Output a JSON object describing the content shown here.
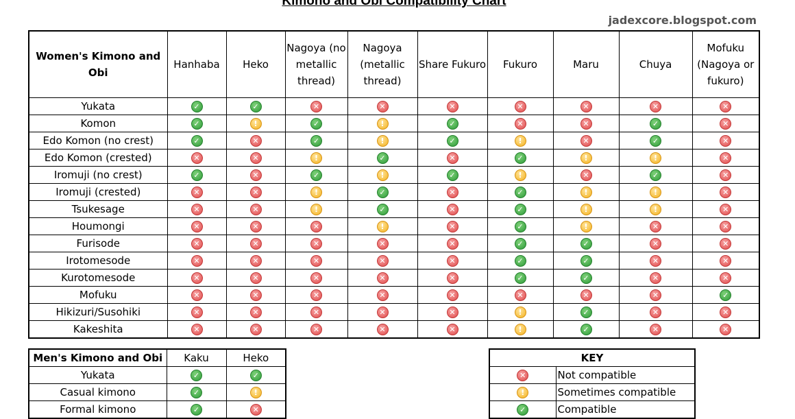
{
  "title": "Kimono and Obi Compatibility Chart",
  "credit": "jadexcore.blogspot.com",
  "icons": {
    "yes": "check-icon",
    "no": "x-icon",
    "maybe": "exclamation-icon"
  },
  "colors": {
    "yes": "#2e9a38",
    "no": "#e04b4b",
    "maybe": "#f4b21f"
  },
  "women": {
    "corner": "Women's Kimono and Obi",
    "columns": [
      "Hanhaba",
      "Heko",
      "Nagoya (no metallic thread)",
      "Nagoya (metallic thread)",
      "Share Fukuro",
      "Fukuro",
      "Maru",
      "Chuya",
      "Mofuku (Nagoya or fukuro)"
    ],
    "rows": [
      {
        "label": "Yukata",
        "values": [
          "yes",
          "yes",
          "no",
          "no",
          "no",
          "no",
          "no",
          "no",
          "no"
        ]
      },
      {
        "label": "Komon",
        "values": [
          "yes",
          "maybe",
          "yes",
          "maybe",
          "yes",
          "no",
          "no",
          "yes",
          "no"
        ]
      },
      {
        "label": "Edo Komon (no crest)",
        "values": [
          "yes",
          "no",
          "yes",
          "maybe",
          "yes",
          "maybe",
          "no",
          "yes",
          "no"
        ]
      },
      {
        "label": "Edo Komon (crested)",
        "values": [
          "no",
          "no",
          "maybe",
          "yes",
          "no",
          "yes",
          "maybe",
          "maybe",
          "no"
        ]
      },
      {
        "label": "Iromuji (no crest)",
        "values": [
          "yes",
          "no",
          "yes",
          "maybe",
          "yes",
          "maybe",
          "no",
          "yes",
          "no"
        ]
      },
      {
        "label": "Iromuji (crested)",
        "values": [
          "no",
          "no",
          "maybe",
          "yes",
          "no",
          "yes",
          "maybe",
          "maybe",
          "no"
        ]
      },
      {
        "label": "Tsukesage",
        "values": [
          "no",
          "no",
          "maybe",
          "yes",
          "no",
          "yes",
          "maybe",
          "maybe",
          "no"
        ]
      },
      {
        "label": "Houmongi",
        "values": [
          "no",
          "no",
          "no",
          "maybe",
          "no",
          "yes",
          "maybe",
          "no",
          "no"
        ]
      },
      {
        "label": "Furisode",
        "values": [
          "no",
          "no",
          "no",
          "no",
          "no",
          "yes",
          "yes",
          "no",
          "no"
        ]
      },
      {
        "label": "Irotomesode",
        "values": [
          "no",
          "no",
          "no",
          "no",
          "no",
          "yes",
          "yes",
          "no",
          "no"
        ]
      },
      {
        "label": "Kurotomesode",
        "values": [
          "no",
          "no",
          "no",
          "no",
          "no",
          "yes",
          "yes",
          "no",
          "no"
        ]
      },
      {
        "label": "Mofuku",
        "values": [
          "no",
          "no",
          "no",
          "no",
          "no",
          "no",
          "no",
          "no",
          "yes"
        ]
      },
      {
        "label": "Hikizuri/Susohiki",
        "values": [
          "no",
          "no",
          "no",
          "no",
          "no",
          "maybe",
          "yes",
          "no",
          "no"
        ]
      },
      {
        "label": "Kakeshita",
        "values": [
          "no",
          "no",
          "no",
          "no",
          "no",
          "maybe",
          "yes",
          "no",
          "no"
        ]
      }
    ]
  },
  "men": {
    "corner": "Men's Kimono and Obi",
    "columns": [
      "Kaku",
      "Heko"
    ],
    "rows": [
      {
        "label": "Yukata",
        "values": [
          "yes",
          "yes"
        ]
      },
      {
        "label": "Casual kimono",
        "values": [
          "yes",
          "maybe"
        ]
      },
      {
        "label": "Formal kimono",
        "values": [
          "yes",
          "no"
        ]
      }
    ]
  },
  "key": {
    "header": "KEY",
    "items": [
      {
        "icon": "no",
        "label": "Not compatible"
      },
      {
        "icon": "maybe",
        "label": "Sometimes compatible"
      },
      {
        "icon": "yes",
        "label": "Compatible"
      }
    ]
  }
}
